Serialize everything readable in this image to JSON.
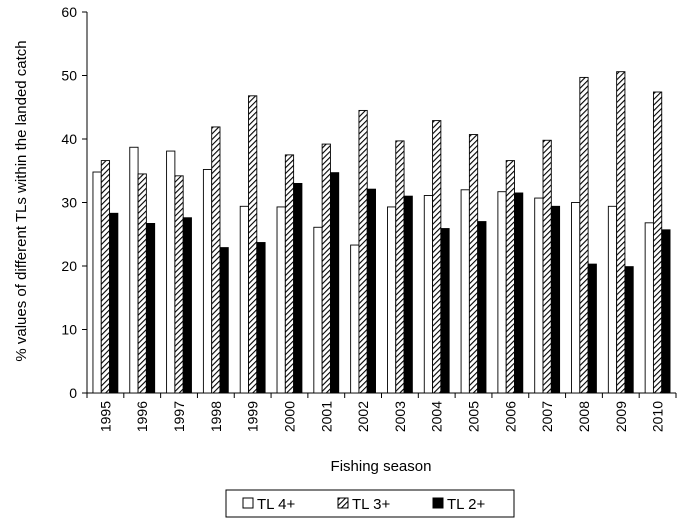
{
  "chart_data": {
    "type": "bar",
    "title": "",
    "xlabel": "Fishing season",
    "ylabel": "% values of different TLs within the landed catch",
    "ylim": [
      0,
      60
    ],
    "yticks": [
      0,
      10,
      20,
      30,
      40,
      50,
      60
    ],
    "categories": [
      "1995",
      "1996",
      "1997",
      "1998",
      "1999",
      "2000",
      "2001",
      "2002",
      "2003",
      "2004",
      "2005",
      "2006",
      "2007",
      "2008",
      "2009",
      "2010"
    ],
    "series": [
      {
        "name": "TL 4+",
        "fill": "white",
        "values": [
          34.8,
          38.7,
          38.1,
          35.2,
          29.4,
          29.3,
          26.1,
          23.3,
          29.3,
          31.1,
          32.0,
          31.7,
          30.7,
          30.0,
          29.4,
          26.8
        ]
      },
      {
        "name": "TL 3+",
        "fill": "hatched",
        "values": [
          36.6,
          34.5,
          34.2,
          41.9,
          46.8,
          37.5,
          39.2,
          44.5,
          39.7,
          42.9,
          40.7,
          36.6,
          39.8,
          49.7,
          50.6,
          47.4
        ]
      },
      {
        "name": "TL 2+",
        "fill": "black",
        "values": [
          28.3,
          26.7,
          27.6,
          22.9,
          23.7,
          33.0,
          34.7,
          32.1,
          31.0,
          25.9,
          27.0,
          31.5,
          29.4,
          20.3,
          19.9,
          25.7
        ]
      }
    ],
    "legend_position": "bottom",
    "grid": false,
    "colors": {
      "stroke": "#000000",
      "white": "#ffffff",
      "black": "#000000"
    }
  }
}
